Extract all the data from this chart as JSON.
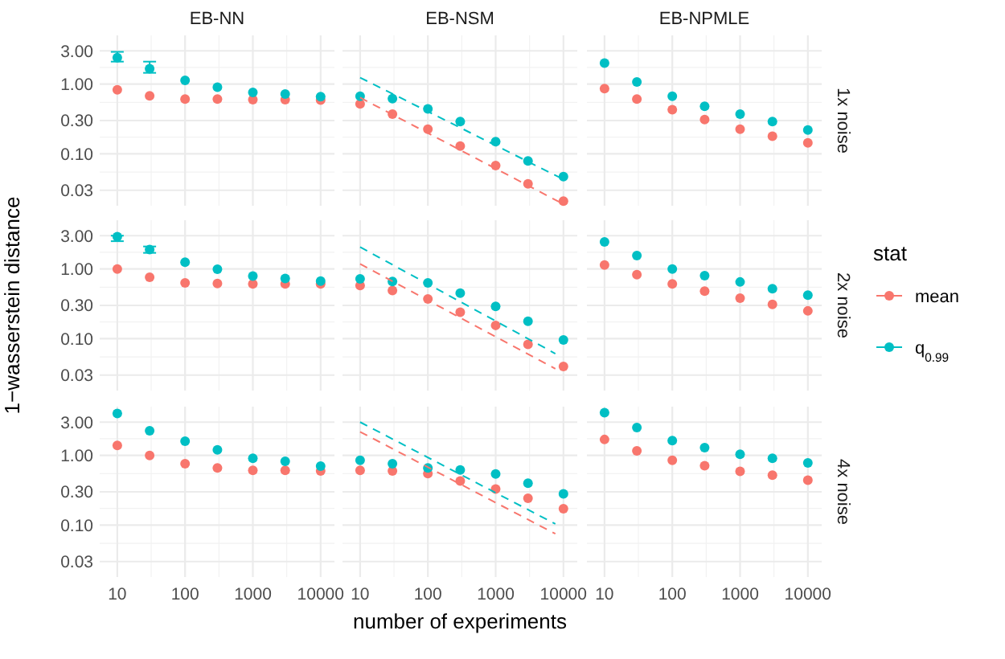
{
  "chart_data": [
    {
      "type": "scatter",
      "title": "EB-NN",
      "x": [
        10,
        30,
        100,
        300,
        1000,
        3000,
        10000
      ],
      "xlim": [
        5.5,
        16000
      ],
      "xticks": [
        10,
        100,
        1000,
        10000
      ],
      "ylim": [
        0.018,
        5
      ],
      "yticks": [
        {
          "value": 0.03,
          "label": "0.03"
        },
        {
          "value": 0.1,
          "label": "0.10"
        },
        {
          "value": 0.3,
          "label": "0.30"
        },
        {
          "value": 1,
          "label": "1.00"
        },
        {
          "value": 3,
          "label": "3.00"
        }
      ],
      "log": "xy",
      "grid": true,
      "marker": "circle",
      "tick_labels": "y",
      "series": [
        {
          "color": "#f8766d",
          "values": [
            0.83,
            0.68,
            0.61,
            0.61,
            0.6,
            0.6,
            0.59
          ]
        },
        {
          "color": "#00bfc4",
          "values": [
            2.4,
            1.66,
            1.13,
            0.9,
            0.76,
            0.72,
            0.66
          ],
          "errors": [
            [
              2.1,
              2.9
            ],
            [
              1.45,
              2.1
            ],
            null,
            null,
            null,
            null,
            null
          ]
        }
      ]
    },
    {
      "type": "scatter",
      "title": "EB-NSM",
      "x": [
        10,
        30,
        100,
        300,
        1000,
        3000,
        10000
      ],
      "xlim": [
        5.5,
        16000
      ],
      "xticks": [
        10,
        100,
        1000,
        10000
      ],
      "ylim": [
        0.018,
        5
      ],
      "yticks": [
        0.03,
        0.1,
        0.3,
        1,
        3
      ],
      "log": "xy",
      "grid": true,
      "marker": "circle",
      "tick_labels": false,
      "series": [
        {
          "color": "#f8766d",
          "values": [
            0.52,
            0.37,
            0.226,
            0.129,
            0.068,
            0.037,
            0.021
          ]
        },
        {
          "color": "#00bfc4",
          "values": [
            0.67,
            0.62,
            0.44,
            0.29,
            0.149,
            0.079,
            0.047
          ]
        },
        {
          "type": "line",
          "line_style": "dashed",
          "marker": "none",
          "color": "#f8766d",
          "x": [
            10,
            10000
          ],
          "values": [
            0.64,
            0.019
          ]
        },
        {
          "type": "line",
          "line_style": "dashed",
          "marker": "none",
          "color": "#00bfc4",
          "x": [
            10,
            10000
          ],
          "values": [
            1.24,
            0.043
          ]
        }
      ]
    },
    {
      "type": "scatter",
      "title": "EB-NPMLE",
      "y2label": "1x noise",
      "x": [
        10,
        30,
        100,
        300,
        1000,
        3000,
        10000
      ],
      "xlim": [
        5.5,
        16000
      ],
      "xticks": [
        10,
        100,
        1000,
        10000
      ],
      "ylim": [
        0.018,
        5
      ],
      "yticks": [
        0.03,
        0.1,
        0.3,
        1,
        3
      ],
      "log": "xy",
      "grid": true,
      "marker": "circle",
      "tick_labels": false,
      "series": [
        {
          "color": "#f8766d",
          "values": [
            0.86,
            0.61,
            0.43,
            0.31,
            0.226,
            0.179,
            0.144
          ]
        },
        {
          "color": "#00bfc4",
          "values": [
            2.0,
            1.07,
            0.67,
            0.48,
            0.37,
            0.29,
            0.22
          ]
        }
      ]
    },
    {
      "type": "scatter",
      "ylabel": "1−wasserstein distance",
      "x": [
        10,
        30,
        100,
        300,
        1000,
        3000,
        10000
      ],
      "xlim": [
        5.5,
        16000
      ],
      "xticks": [
        10,
        100,
        1000,
        10000
      ],
      "ylim": [
        0.018,
        5
      ],
      "yticks": [
        {
          "value": 0.03,
          "label": "0.03"
        },
        {
          "value": 0.1,
          "label": "0.10"
        },
        {
          "value": 0.3,
          "label": "0.30"
        },
        {
          "value": 1,
          "label": "1.00"
        },
        {
          "value": 3,
          "label": "3.00"
        }
      ],
      "log": "xy",
      "grid": true,
      "marker": "circle",
      "tick_labels": "y",
      "series": [
        {
          "color": "#f8766d",
          "values": [
            1.0,
            0.76,
            0.63,
            0.62,
            0.61,
            0.61,
            0.61
          ]
        },
        {
          "color": "#00bfc4",
          "values": [
            2.9,
            1.9,
            1.25,
            0.99,
            0.79,
            0.73,
            0.67
          ],
          "errors": [
            [
              2.5,
              3.0
            ],
            [
              1.7,
              2.1
            ],
            null,
            null,
            null,
            null,
            null
          ]
        }
      ]
    },
    {
      "type": "scatter",
      "x": [
        10,
        30,
        100,
        300,
        1000,
        3000,
        10000
      ],
      "xlim": [
        5.5,
        16000
      ],
      "xticks": [
        10,
        100,
        1000,
        10000
      ],
      "ylim": [
        0.018,
        5
      ],
      "yticks": [
        0.03,
        0.1,
        0.3,
        1,
        3
      ],
      "log": "xy",
      "grid": true,
      "marker": "circle",
      "tick_labels": false,
      "series": [
        {
          "color": "#f8766d",
          "values": [
            0.58,
            0.49,
            0.37,
            0.24,
            0.155,
            0.083,
            0.04
          ]
        },
        {
          "color": "#00bfc4",
          "values": [
            0.72,
            0.66,
            0.63,
            0.45,
            0.29,
            0.178,
            0.096
          ]
        },
        {
          "type": "line",
          "line_style": "dashed",
          "marker": "none",
          "color": "#f8766d",
          "x": [
            10,
            7600
          ],
          "values": [
            1.18,
            0.037
          ]
        },
        {
          "type": "line",
          "line_style": "dashed",
          "marker": "none",
          "color": "#00bfc4",
          "x": [
            10,
            7600
          ],
          "values": [
            2.06,
            0.061
          ]
        }
      ]
    },
    {
      "type": "scatter",
      "y2label": "2x noise",
      "legend_title": "stat",
      "legend": "right",
      "x": [
        10,
        30,
        100,
        300,
        1000,
        3000,
        10000
      ],
      "xlim": [
        5.5,
        16000
      ],
      "xticks": [
        10,
        100,
        1000,
        10000
      ],
      "ylim": [
        0.018,
        5
      ],
      "yticks": [
        0.03,
        0.1,
        0.3,
        1,
        3
      ],
      "log": "xy",
      "grid": true,
      "marker": "circle",
      "tick_labels": false,
      "series": [
        {
          "name": "mean",
          "color": "#f8766d",
          "values": [
            1.14,
            0.83,
            0.61,
            0.48,
            0.38,
            0.31,
            0.25
          ]
        },
        {
          "name": "q$_{0.99}$",
          "color": "#00bfc4",
          "values": [
            2.44,
            1.56,
            1.0,
            0.8,
            0.65,
            0.52,
            0.42
          ]
        }
      ]
    },
    {
      "type": "scatter",
      "x": [
        10,
        30,
        100,
        300,
        1000,
        3000,
        10000
      ],
      "xlim": [
        5.5,
        16000
      ],
      "xticks": [
        10,
        100,
        1000,
        10000
      ],
      "ylim": [
        0.018,
        5
      ],
      "yticks": [
        {
          "value": 0.03,
          "label": "0.03"
        },
        {
          "value": 0.1,
          "label": "0.10"
        },
        {
          "value": 0.3,
          "label": "0.30"
        },
        {
          "value": 1,
          "label": "1.00"
        },
        {
          "value": 3,
          "label": "3.00"
        }
      ],
      "log": "xy",
      "grid": true,
      "marker": "circle",
      "series": [
        {
          "color": "#f8766d",
          "values": [
            1.39,
            1.0,
            0.76,
            0.66,
            0.61,
            0.61,
            0.6
          ]
        },
        {
          "color": "#00bfc4",
          "values": [
            4.0,
            2.26,
            1.6,
            1.2,
            0.91,
            0.82,
            0.7
          ]
        }
      ]
    },
    {
      "type": "scatter",
      "xlabel": "number of experiments",
      "x": [
        10,
        30,
        100,
        300,
        1000,
        3000,
        10000
      ],
      "xlim": [
        5.5,
        16000
      ],
      "xticks": [
        10,
        100,
        1000,
        10000
      ],
      "ylim": [
        0.018,
        5
      ],
      "yticks": [
        0.03,
        0.1,
        0.3,
        1,
        3
      ],
      "log": "xy",
      "grid": true,
      "marker": "circle",
      "tick_labels": "x",
      "series": [
        {
          "color": "#f8766d",
          "values": [
            0.61,
            0.6,
            0.55,
            0.43,
            0.33,
            0.243,
            0.172
          ]
        },
        {
          "color": "#00bfc4",
          "values": [
            0.85,
            0.76,
            0.66,
            0.62,
            0.54,
            0.4,
            0.28
          ]
        },
        {
          "type": "line",
          "line_style": "dashed",
          "marker": "none",
          "color": "#f8766d",
          "x": [
            10,
            7600
          ],
          "values": [
            2.18,
            0.075
          ]
        },
        {
          "type": "line",
          "line_style": "dashed",
          "marker": "none",
          "color": "#00bfc4",
          "x": [
            10,
            7600
          ],
          "values": [
            3.0,
            0.104
          ]
        }
      ]
    },
    {
      "type": "scatter",
      "y2label": "4x noise",
      "x": [
        10,
        30,
        100,
        300,
        1000,
        3000,
        10000
      ],
      "xlim": [
        5.5,
        16000
      ],
      "xticks": [
        10,
        100,
        1000,
        10000
      ],
      "ylim": [
        0.018,
        5
      ],
      "yticks": [
        0.03,
        0.1,
        0.3,
        1,
        3
      ],
      "log": "xy",
      "grid": true,
      "marker": "circle",
      "tick_labels": "x",
      "series": [
        {
          "color": "#f8766d",
          "values": [
            1.69,
            1.16,
            0.85,
            0.71,
            0.59,
            0.52,
            0.44
          ]
        },
        {
          "color": "#00bfc4",
          "values": [
            4.1,
            2.5,
            1.63,
            1.29,
            1.04,
            0.91,
            0.78
          ]
        }
      ]
    }
  ]
}
